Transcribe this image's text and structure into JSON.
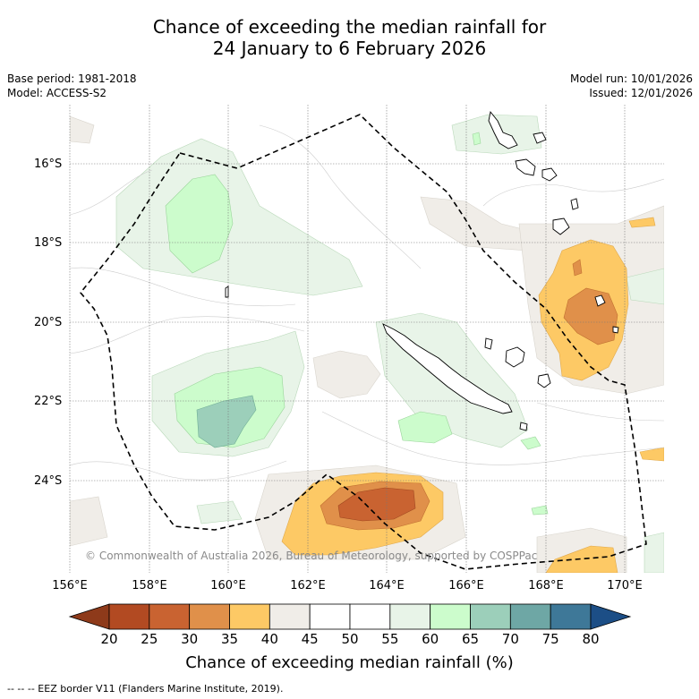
{
  "title_line1": "Chance of exceeding the median rainfall for",
  "title_line2": "24 January to 6 February 2026",
  "base_period": "Base period: 1981-2018",
  "model": "Model: ACCESS-S2",
  "model_run": "Model run: 10/01/2026",
  "issued": "Issued: 12/01/2026",
  "copyright": "© Commonwealth of Australia 2026, Bureau of Meteorology, supported by COSPPac",
  "lat_labels": [
    "16°S",
    "18°S",
    "20°S",
    "22°S",
    "24°S"
  ],
  "lon_labels": [
    "156°E",
    "158°E",
    "160°E",
    "162°E",
    "164°E",
    "166°E",
    "168°E",
    "170°E"
  ],
  "colorbar": {
    "ticks": [
      "20",
      "25",
      "30",
      "35",
      "40",
      "45",
      "50",
      "55",
      "60",
      "65",
      "70",
      "75",
      "80"
    ],
    "colors": [
      "#8e3a1a",
      "#b24a22",
      "#c96331",
      "#e0904a",
      "#fdc965",
      "#f0ede8",
      "#ffffff",
      "#ffffff",
      "#e8f4e8",
      "#ccfccc",
      "#9ccfba",
      "#6ea7a5",
      "#3e7898",
      "#1c4e86"
    ],
    "label": "Chance of exceeding median rainfall (%)"
  },
  "legend_footnote": "-- -- -- EEZ border V11 (Flanders Marine Institute, 2019).",
  "chart_data": {
    "type": "map",
    "region": "New Caledonia and surrounds",
    "lon_range": [
      156,
      171
    ],
    "lat_range": [
      -26.3,
      -14.5
    ],
    "features": [
      {
        "name": "southwest of New Caledonia, near 163.5°E 24.7°S",
        "category": "20-30%"
      },
      {
        "name": "east of New Caledonia, near 168.8°E 19.5°S",
        "category": "25-35%"
      },
      {
        "name": "southwest Coral Sea, near 160.5°E 22.5°S",
        "category": "65-70%"
      },
      {
        "name": "west Coral Sea, near 160°E 17.5°S",
        "category": "60-65%"
      }
    ]
  }
}
